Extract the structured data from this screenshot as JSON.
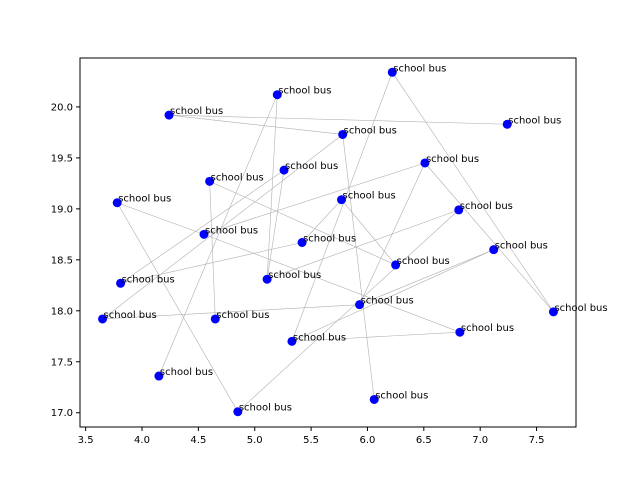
{
  "chart_data": {
    "type": "scatter",
    "title": "",
    "xlabel": "",
    "ylabel": "",
    "xlim": [
      3.45,
      7.85
    ],
    "ylim": [
      16.86,
      20.48
    ],
    "xticks": [
      "3.5",
      "4.0",
      "4.5",
      "5.0",
      "5.5",
      "6.0",
      "6.5",
      "7.0",
      "7.5"
    ],
    "yticks": [
      "17.0",
      "17.5",
      "18.0",
      "18.5",
      "19.0",
      "19.5",
      "20.0"
    ],
    "grid": false,
    "point_color": "#0000ff",
    "edge_color": "#b0b0b0",
    "points": [
      {
        "x": 6.22,
        "y": 20.34,
        "label": "school bus"
      },
      {
        "x": 5.2,
        "y": 20.12,
        "label": "school bus"
      },
      {
        "x": 4.24,
        "y": 19.92,
        "label": "school bus"
      },
      {
        "x": 7.24,
        "y": 19.83,
        "label": "school bus"
      },
      {
        "x": 5.78,
        "y": 19.73,
        "label": "school bus"
      },
      {
        "x": 6.51,
        "y": 19.45,
        "label": "school bus"
      },
      {
        "x": 5.26,
        "y": 19.38,
        "label": "school bus"
      },
      {
        "x": 4.6,
        "y": 19.27,
        "label": "school bus"
      },
      {
        "x": 3.78,
        "y": 19.06,
        "label": "school bus"
      },
      {
        "x": 5.77,
        "y": 19.09,
        "label": "school bus"
      },
      {
        "x": 6.81,
        "y": 18.99,
        "label": "school bus"
      },
      {
        "x": 4.55,
        "y": 18.75,
        "label": "school bus"
      },
      {
        "x": 5.42,
        "y": 18.67,
        "label": "school bus"
      },
      {
        "x": 7.12,
        "y": 18.6,
        "label": "school bus"
      },
      {
        "x": 6.25,
        "y": 18.45,
        "label": "school bus"
      },
      {
        "x": 5.11,
        "y": 18.31,
        "label": "school bus"
      },
      {
        "x": 3.81,
        "y": 18.27,
        "label": "school bus"
      },
      {
        "x": 5.93,
        "y": 18.06,
        "label": "school bus"
      },
      {
        "x": 7.65,
        "y": 17.99,
        "label": "school bus"
      },
      {
        "x": 3.65,
        "y": 17.92,
        "label": "school bus"
      },
      {
        "x": 4.65,
        "y": 17.92,
        "label": "school bus"
      },
      {
        "x": 6.82,
        "y": 17.79,
        "label": "school bus"
      },
      {
        "x": 5.33,
        "y": 17.7,
        "label": "school bus"
      },
      {
        "x": 4.15,
        "y": 17.36,
        "label": "school bus"
      },
      {
        "x": 6.06,
        "y": 17.13,
        "label": "school bus"
      },
      {
        "x": 4.85,
        "y": 17.01,
        "label": "school bus"
      }
    ],
    "edges": [
      [
        0,
        22
      ],
      [
        0,
        18
      ],
      [
        1,
        15
      ],
      [
        1,
        23
      ],
      [
        2,
        4
      ],
      [
        2,
        3
      ],
      [
        4,
        24
      ],
      [
        4,
        19
      ],
      [
        5,
        17
      ],
      [
        5,
        18
      ],
      [
        5,
        11
      ],
      [
        6,
        16
      ],
      [
        6,
        15
      ],
      [
        7,
        14
      ],
      [
        7,
        20
      ],
      [
        8,
        11
      ],
      [
        8,
        25
      ],
      [
        9,
        14
      ],
      [
        9,
        12
      ],
      [
        10,
        25
      ],
      [
        10,
        15
      ],
      [
        11,
        21
      ],
      [
        12,
        16
      ],
      [
        13,
        22
      ],
      [
        13,
        17
      ],
      [
        17,
        19
      ],
      [
        21,
        22
      ]
    ]
  }
}
